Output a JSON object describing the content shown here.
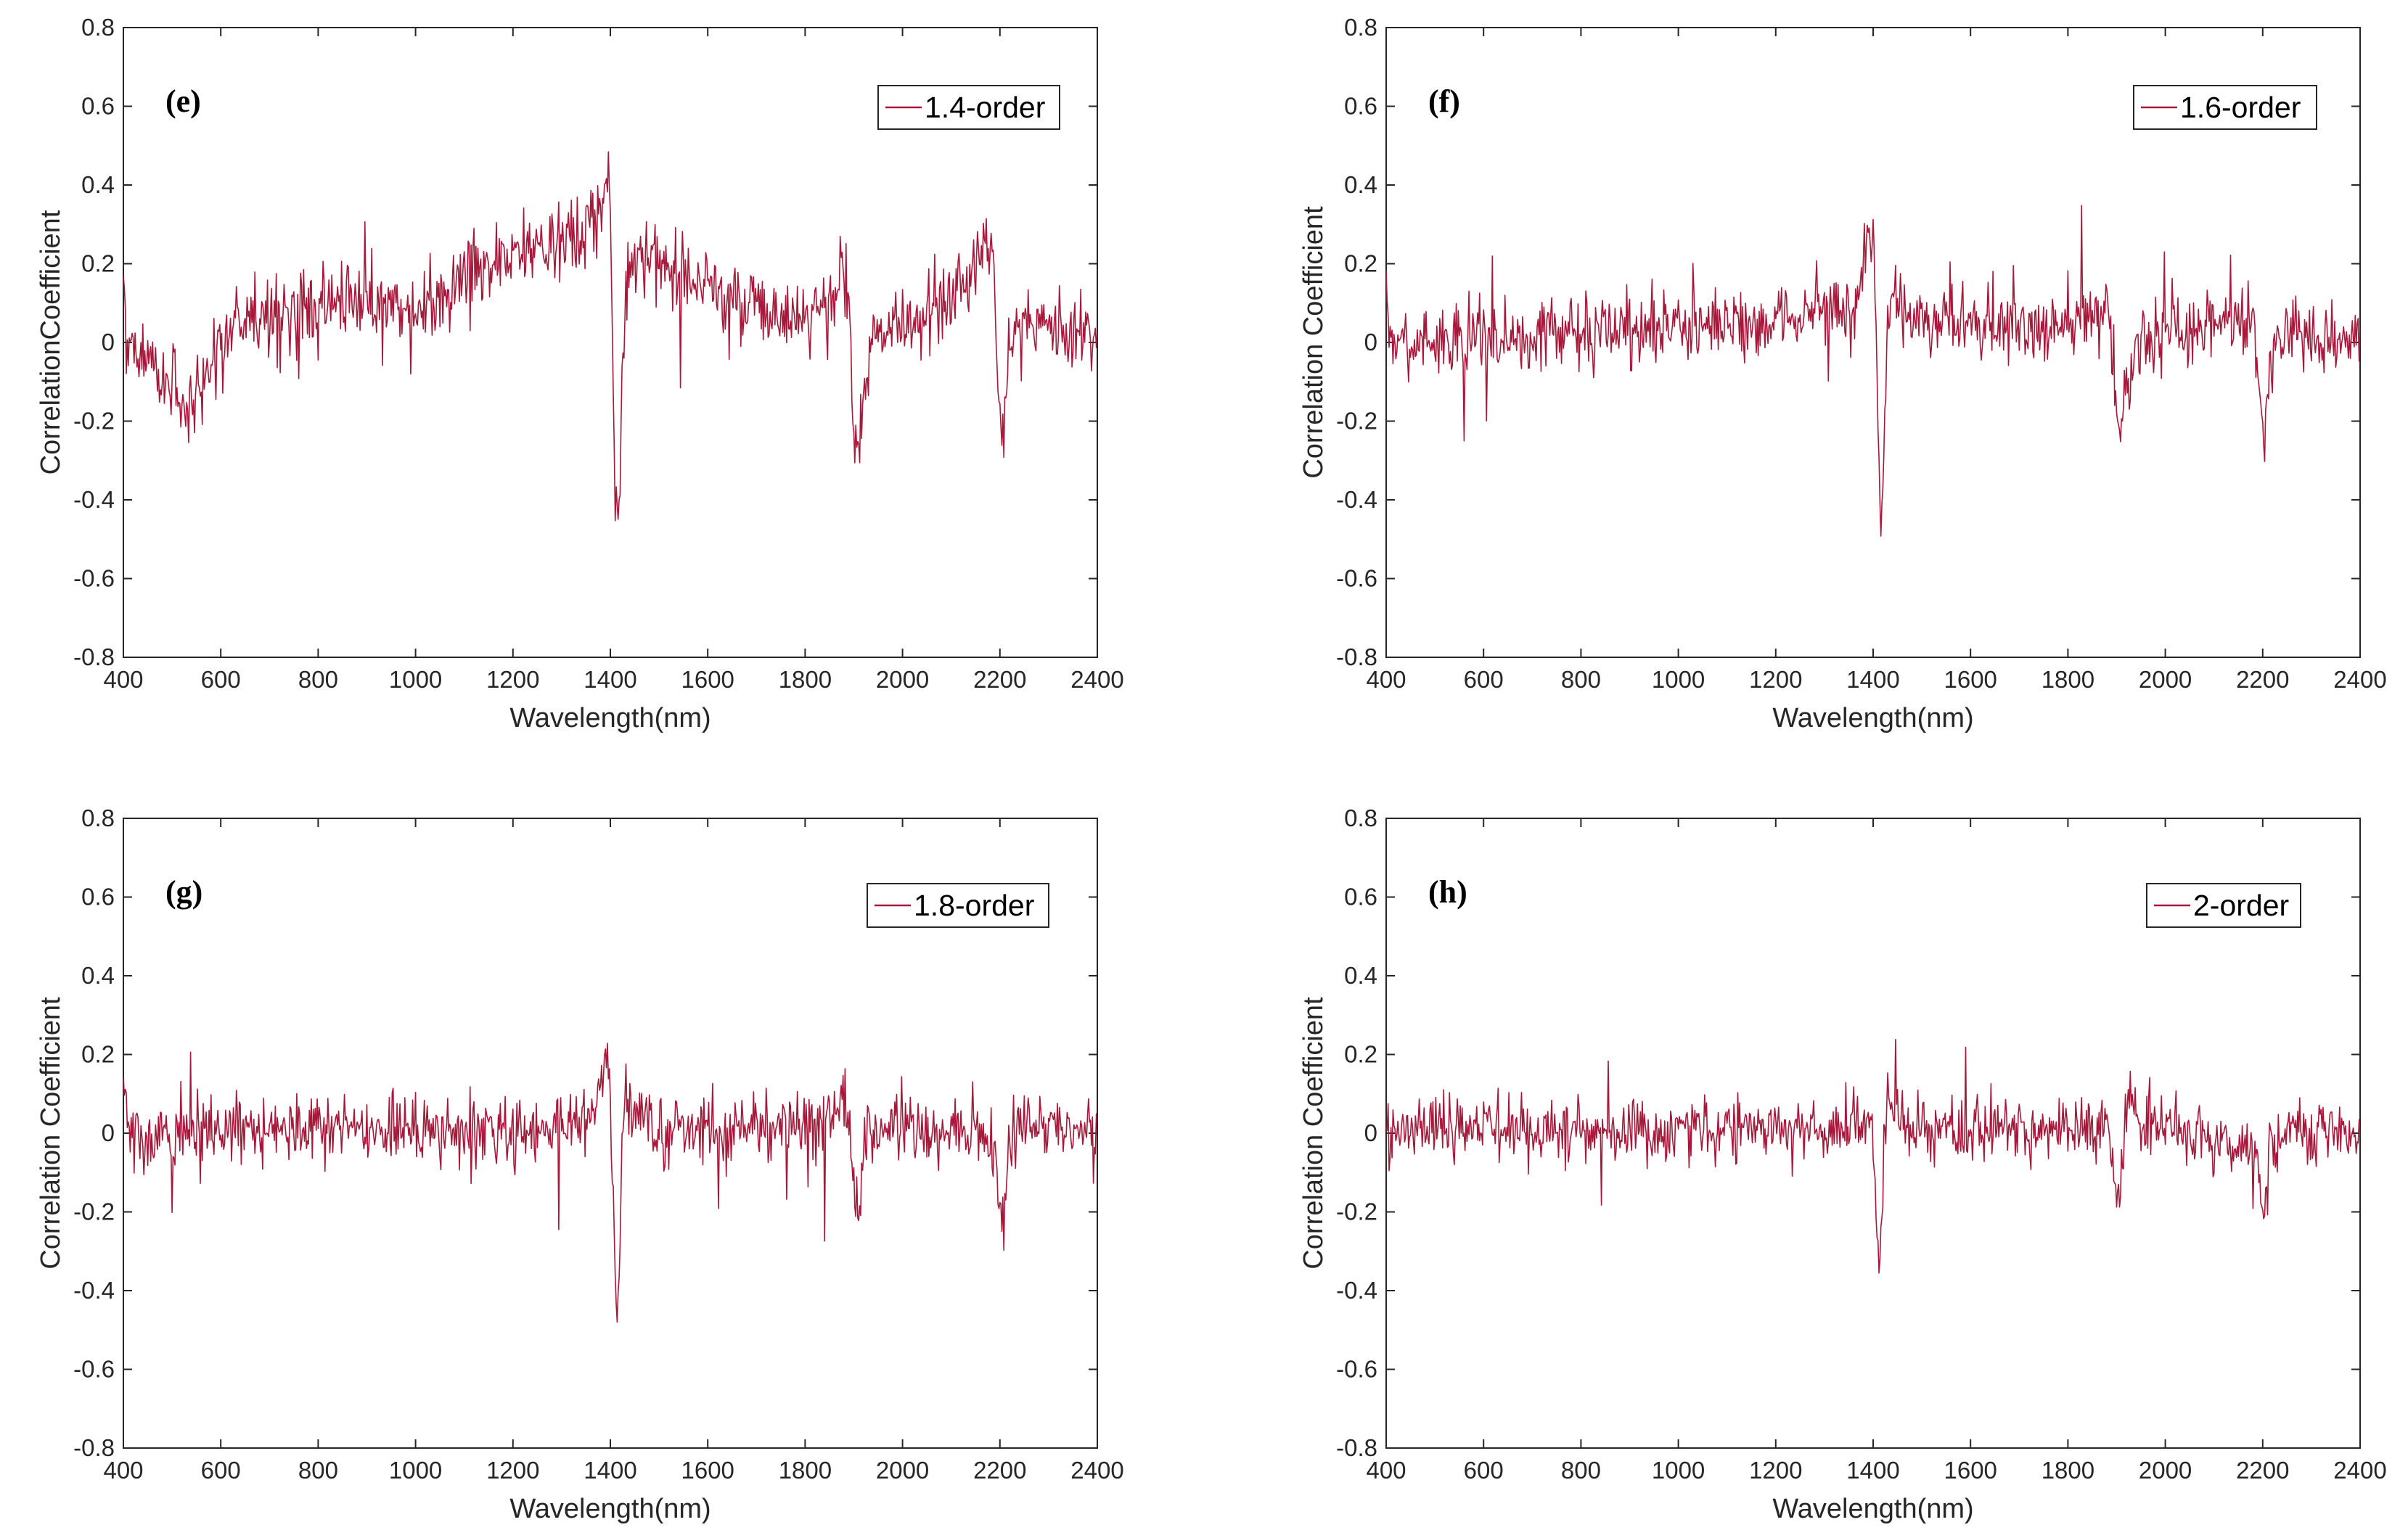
{
  "figure": {
    "series_color": "#a8183a"
  },
  "chart_data": [
    {
      "type": "line",
      "panel": "(e)",
      "legend": "1.4-order",
      "xlabel": "Wavelength(nm)",
      "ylabel": "CorrelationCoefficient",
      "xlim": [
        400,
        2400
      ],
      "ylim": [
        -0.8,
        0.8
      ],
      "xticks": [
        400,
        600,
        800,
        1000,
        1200,
        1400,
        1600,
        1800,
        2000,
        2200,
        2400
      ],
      "yticks": [
        -0.8,
        -0.6,
        -0.4,
        -0.2,
        0,
        0.2,
        0.4,
        0.6,
        0.8
      ],
      "noise": 0.09,
      "series": [
        {
          "name": "1.4-order",
          "x": [
            400,
            405,
            420,
            460,
            500,
            540,
            560,
            600,
            650,
            700,
            800,
            900,
            1000,
            1050,
            1100,
            1150,
            1200,
            1250,
            1300,
            1350,
            1380,
            1395,
            1400,
            1405,
            1410,
            1415,
            1420,
            1425,
            1430,
            1440,
            1460,
            1500,
            1600,
            1700,
            1800,
            1860,
            1880,
            1890,
            1900,
            1910,
            1920,
            1940,
            1970,
            2000,
            2050,
            2100,
            2150,
            2180,
            2190,
            2200,
            2205,
            2210,
            2220,
            2240,
            2300,
            2350,
            2400
          ],
          "y": [
            0.2,
            0.02,
            -0.02,
            -0.06,
            -0.1,
            -0.19,
            -0.12,
            0.0,
            0.03,
            0.06,
            0.09,
            0.09,
            0.07,
            0.1,
            0.17,
            0.2,
            0.23,
            0.24,
            0.25,
            0.27,
            0.35,
            0.45,
            0.3,
            -0.1,
            -0.4,
            -0.46,
            -0.35,
            -0.05,
            0.12,
            0.2,
            0.21,
            0.2,
            0.14,
            0.08,
            0.06,
            0.08,
            0.22,
            0.05,
            -0.2,
            -0.28,
            -0.12,
            0.03,
            0.05,
            0.04,
            0.06,
            0.12,
            0.2,
            0.27,
            0.12,
            -0.2,
            -0.3,
            -0.18,
            0.0,
            0.07,
            0.05,
            0.03,
            0.02
          ]
        }
      ]
    },
    {
      "type": "line",
      "panel": "(f)",
      "legend": "1.6-order",
      "xlabel": "Wavelength(nm)",
      "ylabel": "Correlation Coefficient",
      "xlim": [
        400,
        2400
      ],
      "ylim": [
        -0.8,
        0.8
      ],
      "xticks": [
        400,
        600,
        800,
        1000,
        1200,
        1400,
        1600,
        1800,
        2000,
        2200,
        2400
      ],
      "yticks": [
        -0.8,
        -0.6,
        -0.4,
        -0.2,
        0,
        0.2,
        0.4,
        0.6,
        0.8
      ],
      "noise": 0.08,
      "series": [
        {
          "name": "1.6-order",
          "x": [
            400,
            405,
            420,
            500,
            600,
            800,
            1000,
            1200,
            1300,
            1370,
            1390,
            1400,
            1405,
            1410,
            1415,
            1420,
            1425,
            1430,
            1440,
            1460,
            1500,
            1600,
            1700,
            1800,
            1860,
            1880,
            1890,
            1900,
            1910,
            1920,
            1940,
            2000,
            2100,
            2180,
            2195,
            2200,
            2205,
            2215,
            2240,
            2300,
            2400
          ],
          "y": [
            0.2,
            0.02,
            0.0,
            0.0,
            0.01,
            0.03,
            0.04,
            0.05,
            0.07,
            0.1,
            0.28,
            0.3,
            0.1,
            -0.25,
            -0.45,
            -0.38,
            -0.1,
            0.08,
            0.12,
            0.08,
            0.06,
            0.05,
            0.04,
            0.04,
            0.08,
            0.12,
            0.0,
            -0.2,
            -0.24,
            -0.1,
            0.0,
            0.02,
            0.05,
            0.05,
            -0.1,
            -0.24,
            -0.2,
            -0.05,
            0.03,
            0.02,
            0.01
          ]
        }
      ]
    },
    {
      "type": "line",
      "panel": "(g)",
      "legend": "1.8-order",
      "xlabel": "Wavelength(nm)",
      "ylabel": "Correlation Coefficient",
      "xlim": [
        400,
        2400
      ],
      "ylim": [
        -0.8,
        0.8
      ],
      "xticks": [
        400,
        600,
        800,
        1000,
        1200,
        1400,
        1600,
        1800,
        2000,
        2200,
        2400
      ],
      "yticks": [
        -0.8,
        -0.6,
        -0.4,
        -0.2,
        0,
        0.2,
        0.4,
        0.6,
        0.8
      ],
      "noise": 0.08,
      "series": [
        {
          "name": "1.8-order",
          "x": [
            400,
            405,
            420,
            500,
            600,
            800,
            1000,
            1200,
            1350,
            1380,
            1390,
            1400,
            1405,
            1410,
            1415,
            1420,
            1425,
            1430,
            1440,
            1460,
            1500,
            1600,
            1800,
            1870,
            1880,
            1890,
            1900,
            1910,
            1920,
            1940,
            2000,
            2150,
            2190,
            2200,
            2205,
            2215,
            2240,
            2300,
            2400
          ],
          "y": [
            0.2,
            0.02,
            0.0,
            0.0,
            0.01,
            0.01,
            0.01,
            0.01,
            0.03,
            0.08,
            0.18,
            0.1,
            -0.15,
            -0.35,
            -0.4,
            -0.25,
            0.0,
            0.08,
            0.07,
            0.03,
            0.01,
            0.02,
            0.02,
            0.06,
            0.1,
            0.0,
            -0.15,
            -0.2,
            -0.05,
            0.02,
            0.01,
            0.01,
            -0.05,
            -0.2,
            -0.24,
            -0.05,
            0.01,
            0.01,
            0.0
          ]
        }
      ]
    },
    {
      "type": "line",
      "panel": "(h)",
      "legend": "2-order",
      "xlabel": "Wavelength(nm)",
      "ylabel": "Correlation Coefficient",
      "xlim": [
        400,
        2400
      ],
      "ylim": [
        -0.8,
        0.8
      ],
      "xticks": [
        400,
        600,
        800,
        1000,
        1200,
        1400,
        1600,
        1800,
        2000,
        2200,
        2400
      ],
      "yticks": [
        -0.8,
        -0.6,
        -0.4,
        -0.2,
        0,
        0.2,
        0.4,
        0.6,
        0.8
      ],
      "noise": 0.07,
      "series": [
        {
          "name": "2-order",
          "x": [
            400,
            405,
            420,
            500,
            600,
            800,
            1000,
            1200,
            1380,
            1395,
            1400,
            1405,
            1410,
            1415,
            1420,
            1425,
            1430,
            1440,
            1460,
            1500,
            1600,
            1800,
            1880,
            1890,
            1900,
            1910,
            1920,
            1930,
            1950,
            2000,
            2190,
            2200,
            2205,
            2215,
            2240,
            2300,
            2400
          ],
          "y": [
            0.02,
            0.0,
            0.0,
            0.01,
            0.01,
            0.01,
            0.01,
            0.01,
            0.02,
            0.05,
            0.0,
            -0.15,
            -0.3,
            -0.32,
            -0.15,
            0.02,
            0.07,
            0.06,
            0.02,
            0.01,
            0.01,
            0.01,
            0.02,
            -0.08,
            -0.14,
            -0.12,
            0.05,
            0.1,
            0.03,
            0.01,
            -0.05,
            -0.2,
            -0.18,
            -0.03,
            0.01,
            0.0,
            0.0
          ]
        }
      ]
    }
  ]
}
